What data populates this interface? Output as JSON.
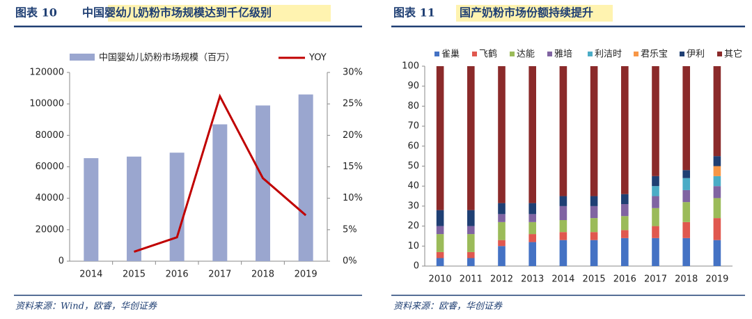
{
  "chart_data": [
    {
      "type": "combo",
      "figure_label": "图表 10",
      "title": "中国婴幼儿奶粉市场规模达到千亿级别",
      "source": "资料来源：Wind，欧睿，华创证券",
      "categories": [
        "2014",
        "2015",
        "2016",
        "2017",
        "2018",
        "2019"
      ],
      "series": [
        {
          "name": "中国婴幼儿奶粉市场规模（百万）",
          "kind": "bar",
          "color": "#9aa6cf",
          "values": [
            65500,
            66500,
            69000,
            87000,
            99000,
            106000
          ]
        },
        {
          "name": "YOY",
          "kind": "line",
          "axis": "y2",
          "color": "#c00000",
          "values": [
            null,
            1.5,
            3.8,
            26.2,
            13.2,
            7.3
          ]
        }
      ],
      "ylim": [
        0,
        120000
      ],
      "yticks": [
        0,
        20000,
        40000,
        60000,
        80000,
        100000,
        120000
      ],
      "y2lim": [
        0,
        30
      ],
      "y2ticks": [
        {
          "value": 0,
          "label": "0%"
        },
        {
          "value": 5,
          "label": "5%"
        },
        {
          "value": 10,
          "label": "10%"
        },
        {
          "value": 15,
          "label": "15%"
        },
        {
          "value": 20,
          "label": "20%"
        },
        {
          "value": 25,
          "label": "25%"
        },
        {
          "value": 30,
          "label": "30%"
        }
      ],
      "legend": "top"
    },
    {
      "type": "stacked-bar",
      "figure_label": "图表 11",
      "title": "国产奶粉市场份额持续提升",
      "source": "资料来源：欧睿，华创证券",
      "categories": [
        "2010",
        "2011",
        "2012",
        "2013",
        "2014",
        "2015",
        "2016",
        "2017",
        "2018",
        "2019"
      ],
      "series": [
        {
          "name": "雀巢",
          "color": "#4472c4",
          "values": [
            4,
            4,
            10,
            12,
            13,
            13,
            14,
            14,
            14,
            13
          ]
        },
        {
          "name": "飞鹤",
          "color": "#e0584f",
          "values": [
            3,
            3,
            3,
            4,
            4,
            4,
            4,
            6,
            8,
            11
          ]
        },
        {
          "name": "达能",
          "color": "#9bbb59",
          "values": [
            9,
            9,
            9,
            6,
            6,
            7,
            7,
            9,
            10,
            10
          ]
        },
        {
          "name": "雅培",
          "color": "#8064a2",
          "values": [
            4,
            4,
            4,
            4,
            7,
            6,
            6,
            6,
            6,
            6
          ]
        },
        {
          "name": "利洁时",
          "color": "#4bacc6",
          "values": [
            0,
            0,
            0,
            0,
            0,
            0,
            0,
            5,
            6,
            5
          ]
        },
        {
          "name": "君乐宝",
          "color": "#f79646",
          "values": [
            0,
            0,
            0,
            0,
            0,
            0,
            0,
            0,
            0,
            5
          ]
        },
        {
          "name": "伊利",
          "color": "#1f3f73",
          "values": [
            8,
            8,
            5.5,
            5.5,
            5,
            5,
            5,
            5,
            4,
            5
          ]
        },
        {
          "name": "其它",
          "color": "#8b2a2a",
          "values": [
            72,
            72,
            68.5,
            68.5,
            65,
            65,
            64,
            55,
            52,
            45
          ]
        }
      ],
      "ylim": [
        0,
        100
      ],
      "yticks": [
        0,
        10,
        20,
        30,
        40,
        50,
        60,
        70,
        80,
        90,
        100
      ],
      "legend": "top"
    }
  ]
}
